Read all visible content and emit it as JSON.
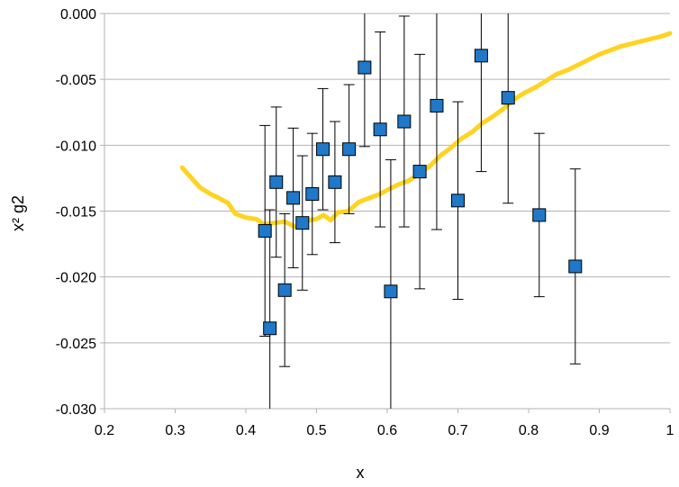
{
  "chart_data": {
    "type": "scatter",
    "title": "",
    "xlabel": "x",
    "ylabel": "x² g2",
    "xlim": [
      0.2,
      1.0
    ],
    "ylim": [
      -0.03,
      0.0
    ],
    "x_ticks": [
      0.2,
      0.3,
      0.4,
      0.5,
      0.6,
      0.7,
      0.8,
      0.9,
      1.0
    ],
    "x_tick_labels": [
      "0.2",
      "0.3",
      "0.4",
      "0.5",
      "0.6",
      "0.7",
      "0.8",
      "0.9",
      "1"
    ],
    "y_ticks": [
      0.0,
      -0.005,
      -0.01,
      -0.015,
      -0.02,
      -0.025,
      -0.03
    ],
    "y_tick_labels": [
      "0.000",
      "-0.005",
      "-0.010",
      "-0.015",
      "-0.020",
      "-0.025",
      "-0.030"
    ],
    "grid": "horizontal",
    "colors": {
      "points": "#1f78c8",
      "curve": "#ffd320",
      "error_bars": "#000000",
      "grid": "#b3b3b3"
    },
    "series": [
      {
        "type": "scatter_with_error_bars",
        "points": [
          {
            "x": 0.427,
            "y": -0.0165,
            "err": 0.008
          },
          {
            "x": 0.434,
            "y": -0.0239,
            "err": 0.009
          },
          {
            "x": 0.443,
            "y": -0.0128,
            "err": 0.0057
          },
          {
            "x": 0.455,
            "y": -0.021,
            "err": 0.0058
          },
          {
            "x": 0.467,
            "y": -0.014,
            "err": 0.0053
          },
          {
            "x": 0.48,
            "y": -0.0159,
            "err": 0.0051
          },
          {
            "x": 0.494,
            "y": -0.0137,
            "err": 0.0046
          },
          {
            "x": 0.509,
            "y": -0.0103,
            "err": 0.0046
          },
          {
            "x": 0.526,
            "y": -0.0128,
            "err": 0.0046
          },
          {
            "x": 0.546,
            "y": -0.0103,
            "err": 0.0049
          },
          {
            "x": 0.568,
            "y": -0.0041,
            "err": 0.006
          },
          {
            "x": 0.59,
            "y": -0.0088,
            "err": 0.0074
          },
          {
            "x": 0.605,
            "y": -0.0211,
            "err": 0.01
          },
          {
            "x": 0.624,
            "y": -0.0082,
            "err": 0.008
          },
          {
            "x": 0.646,
            "y": -0.012,
            "err": 0.0089
          },
          {
            "x": 0.67,
            "y": -0.007,
            "err": 0.0094
          },
          {
            "x": 0.7,
            "y": -0.0142,
            "err": 0.0075
          },
          {
            "x": 0.733,
            "y": -0.0032,
            "err": 0.0088
          },
          {
            "x": 0.771,
            "y": -0.0064,
            "err": 0.008
          },
          {
            "x": 0.815,
            "y": -0.0153,
            "err": 0.0062
          },
          {
            "x": 0.866,
            "y": -0.0192,
            "err": 0.0074
          }
        ]
      },
      {
        "type": "line",
        "x": [
          0.31,
          0.325,
          0.335,
          0.35,
          0.365,
          0.375,
          0.385,
          0.4,
          0.415,
          0.425,
          0.44,
          0.455,
          0.47,
          0.48,
          0.49,
          0.5,
          0.51,
          0.52,
          0.53,
          0.545,
          0.56,
          0.575,
          0.59,
          0.6,
          0.615,
          0.63,
          0.645,
          0.66,
          0.675,
          0.69,
          0.705,
          0.72,
          0.735,
          0.75,
          0.765,
          0.78,
          0.795,
          0.81,
          0.825,
          0.84,
          0.855,
          0.87,
          0.885,
          0.9,
          0.915,
          0.93,
          0.945,
          0.96,
          0.975,
          0.99,
          1.0
        ],
        "y": [
          -0.0117,
          -0.0126,
          -0.0132,
          -0.0137,
          -0.0141,
          -0.0144,
          -0.0152,
          -0.0155,
          -0.0156,
          -0.016,
          -0.0159,
          -0.0158,
          -0.0162,
          -0.016,
          -0.0157,
          -0.0156,
          -0.0153,
          -0.0157,
          -0.0151,
          -0.015,
          -0.0143,
          -0.014,
          -0.0137,
          -0.0134,
          -0.013,
          -0.0127,
          -0.0122,
          -0.0116,
          -0.0108,
          -0.0102,
          -0.0095,
          -0.009,
          -0.0083,
          -0.0078,
          -0.0072,
          -0.0065,
          -0.006,
          -0.0056,
          -0.0051,
          -0.0046,
          -0.0043,
          -0.0039,
          -0.0035,
          -0.0031,
          -0.0028,
          -0.0025,
          -0.0023,
          -0.0021,
          -0.0019,
          -0.0017,
          -0.0015
        ]
      }
    ]
  }
}
